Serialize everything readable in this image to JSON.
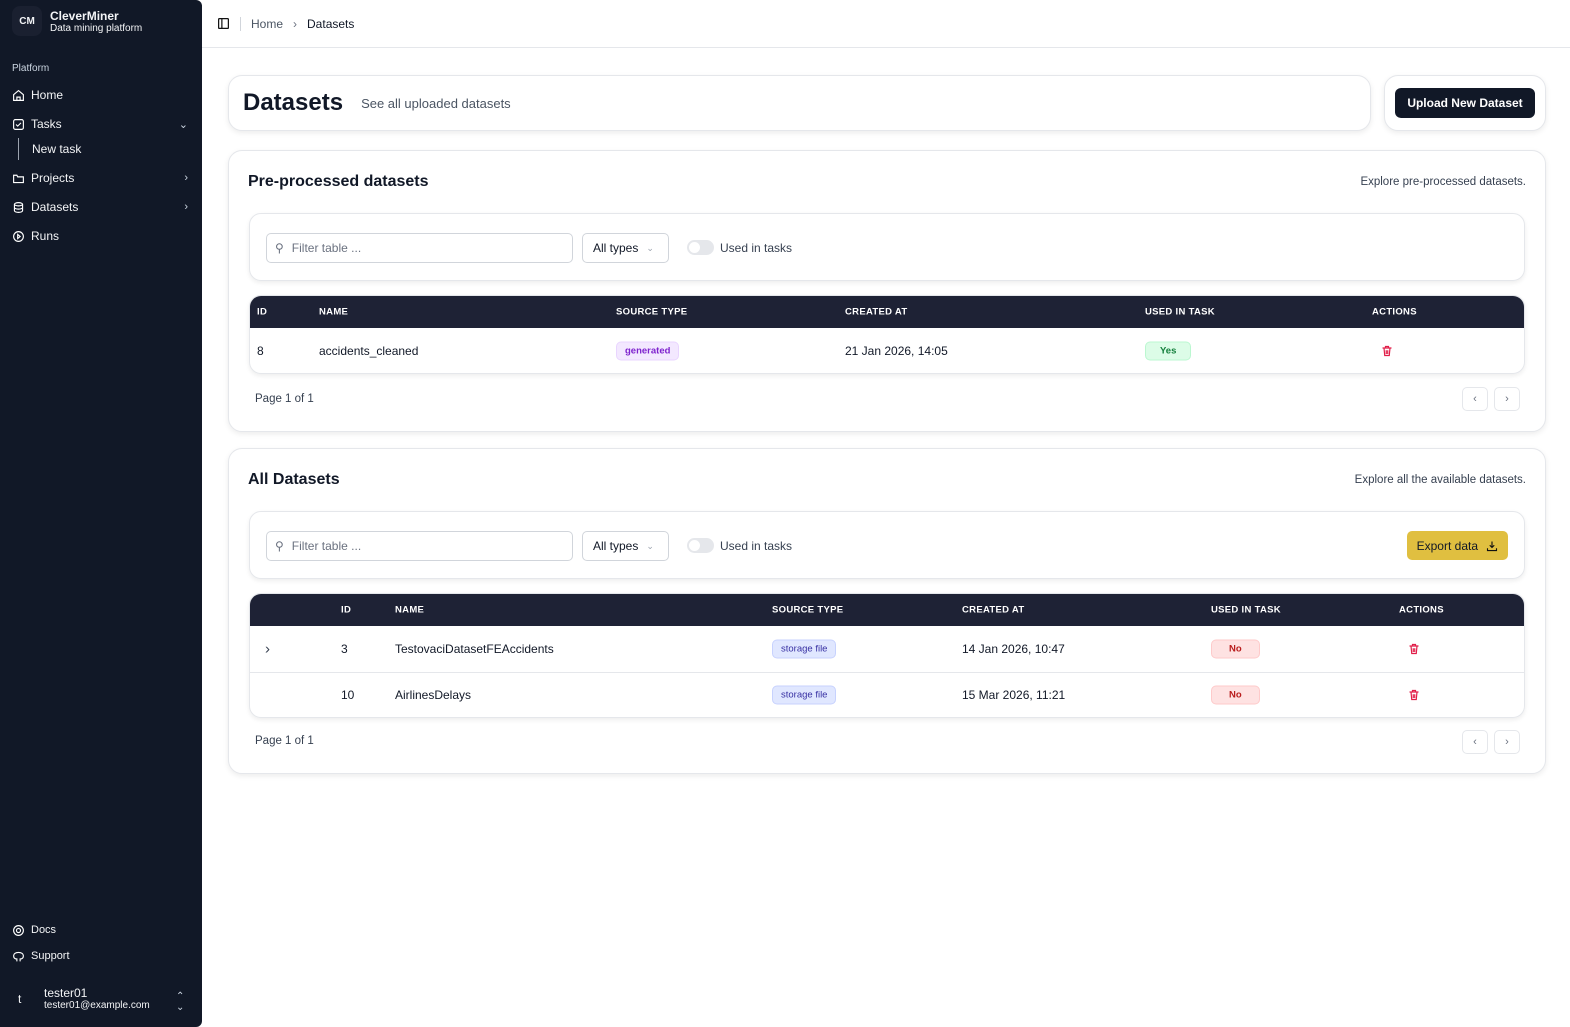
{
  "sidebar": {
    "logo": "CM",
    "app_name": "CleverMiner",
    "app_subtitle": "Data mining platform",
    "section": "Platform",
    "items": [
      {
        "label": "Home",
        "icon": "home-icon"
      },
      {
        "label": "Tasks",
        "icon": "checkbox-icon"
      },
      {
        "label": "New task"
      },
      {
        "label": "Projects",
        "icon": "folder-icon"
      },
      {
        "label": "Datasets",
        "icon": "database-icon"
      },
      {
        "label": "Runs",
        "icon": "play-circle-icon"
      }
    ],
    "footer": [
      {
        "label": "Docs",
        "icon": "lifebuoy-icon"
      },
      {
        "label": "Support",
        "icon": "github-icon"
      }
    ],
    "user": {
      "avatar": "t",
      "name": "tester01",
      "email": "tester01@example.com"
    }
  },
  "breadcrumb": {
    "home": "Home",
    "current": "Datasets"
  },
  "page": {
    "title": "Datasets",
    "subtitle": "See all uploaded datasets",
    "upload_label": "Upload New Dataset"
  },
  "preprocessed": {
    "title": "Pre-processed datasets",
    "description": "Explore pre-processed datasets.",
    "filter_placeholder": "Filter table ...",
    "type_select": "All types",
    "toggle_label": "Used in tasks",
    "columns": [
      "ID",
      "NAME",
      "SOURCE TYPE",
      "CREATED AT",
      "USED IN TASK",
      "ACTIONS"
    ],
    "rows": [
      {
        "id": "8",
        "name": "accidents_cleaned",
        "source": "generated",
        "created": "21 Jan 2026, 14:05",
        "used": "Yes"
      }
    ],
    "page_info": "Page 1 of 1"
  },
  "all": {
    "title": "All Datasets",
    "description": "Explore all the available datasets.",
    "filter_placeholder": "Filter table ...",
    "type_select": "All types",
    "toggle_label": "Used in tasks",
    "export_label": "Export data",
    "columns": [
      "ID",
      "NAME",
      "SOURCE TYPE",
      "CREATED AT",
      "USED IN TASK",
      "ACTIONS"
    ],
    "rows": [
      {
        "id": "3",
        "name": "TestovaciDatasetFEAccidents",
        "source": "storage file",
        "created": "14 Jan 2026, 10:47",
        "used": "No",
        "expandable": true
      },
      {
        "id": "10",
        "name": "AirlinesDelays",
        "source": "storage file",
        "created": "15 Mar 2026, 11:21",
        "used": "No",
        "expandable": false
      }
    ],
    "page_info": "Page 1 of 1"
  },
  "colors": {
    "sidebar": "#111827",
    "table_header": "#1e2235",
    "export": "#e0bf40",
    "delete": "#e11d48"
  }
}
